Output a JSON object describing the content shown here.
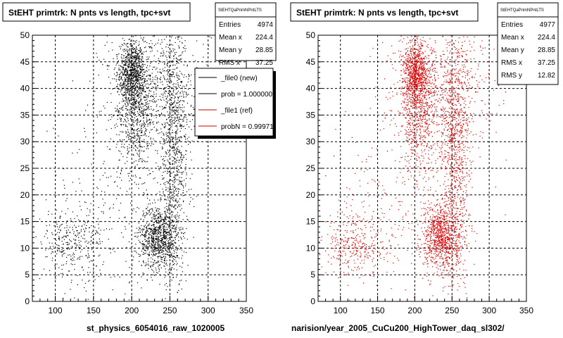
{
  "chart_data": [
    {
      "type": "scatter",
      "title": "StEHT primtrk: N pnts vs length, tpc+svt",
      "xlabel": "st_physics_6054016_raw_1020005",
      "xlim": [
        70,
        350
      ],
      "ylim": [
        0,
        50
      ],
      "xticks": [
        100,
        150,
        200,
        250,
        300,
        350
      ],
      "yticks": [
        0,
        5,
        10,
        15,
        20,
        25,
        30,
        35,
        40,
        45,
        50
      ],
      "grid": true,
      "marker_color": "#000000",
      "stats": {
        "title": "StEHTQaPrimNPntLTS",
        "entries": [
          {
            "label": "Entries",
            "value": "4974"
          },
          {
            "label": "Mean x",
            "value": "224.4"
          },
          {
            "label": "Mean y",
            "value": "28.85"
          },
          {
            "label": "RMS x",
            "value": "37.25"
          }
        ]
      },
      "legend": {
        "placement": "top-right",
        "entries": [
          {
            "label": "_file0 (new)",
            "color": "#000000"
          },
          {
            "label": "prob = 1.000000",
            "color": "#000000"
          },
          {
            "label": "_file1 (ref)",
            "color": "#cc0000"
          },
          {
            "label": "probN = 0.99971",
            "color": "#cc0000"
          }
        ]
      },
      "clusters": [
        {
          "cx": 200,
          "cy": 43,
          "sx": 8,
          "sy": 3,
          "n": 700
        },
        {
          "cx": 205,
          "cy": 36,
          "sx": 12,
          "sy": 6,
          "n": 600
        },
        {
          "cx": 235,
          "cy": 12,
          "sx": 13,
          "sy": 3,
          "n": 900
        },
        {
          "cx": 255,
          "cy": 28,
          "sx": 10,
          "sy": 12,
          "n": 900
        },
        {
          "cx": 120,
          "cy": 11,
          "sx": 22,
          "sy": 3,
          "n": 320
        },
        {
          "cx": 230,
          "cy": 40,
          "sx": 35,
          "sy": 6,
          "n": 700
        },
        {
          "cx": 180,
          "cy": 18,
          "sx": 45,
          "sy": 10,
          "n": 250
        }
      ]
    },
    {
      "type": "scatter",
      "title": "StEHT primtrk: N pnts vs length, tpc+svt",
      "xlabel": "narision/year_2005_CuCu200_HighTower_daq_sl302/",
      "xlim": [
        70,
        350
      ],
      "ylim": [
        0,
        50
      ],
      "xticks": [
        100,
        150,
        200,
        250,
        300,
        350
      ],
      "yticks": [
        0,
        5,
        10,
        15,
        20,
        25,
        30,
        35,
        40,
        45,
        50
      ],
      "grid": true,
      "marker_color": "#dd0000",
      "stats": {
        "title": "StEHTQaPrimNPntLTS",
        "entries": [
          {
            "label": "Entries",
            "value": "4977"
          },
          {
            "label": "Mean x",
            "value": "224.4"
          },
          {
            "label": "Mean y",
            "value": "28.85"
          },
          {
            "label": "RMS x",
            "value": "37.25"
          },
          {
            "label": "RMS y",
            "value": "12.82"
          }
        ]
      },
      "clusters": [
        {
          "cx": 200,
          "cy": 43,
          "sx": 8,
          "sy": 3,
          "n": 700
        },
        {
          "cx": 205,
          "cy": 36,
          "sx": 12,
          "sy": 6,
          "n": 600
        },
        {
          "cx": 235,
          "cy": 12,
          "sx": 13,
          "sy": 3,
          "n": 900
        },
        {
          "cx": 255,
          "cy": 28,
          "sx": 10,
          "sy": 12,
          "n": 900
        },
        {
          "cx": 120,
          "cy": 11,
          "sx": 22,
          "sy": 3,
          "n": 320
        },
        {
          "cx": 230,
          "cy": 40,
          "sx": 35,
          "sy": 6,
          "n": 700
        },
        {
          "cx": 180,
          "cy": 18,
          "sx": 45,
          "sy": 10,
          "n": 250
        }
      ]
    }
  ]
}
